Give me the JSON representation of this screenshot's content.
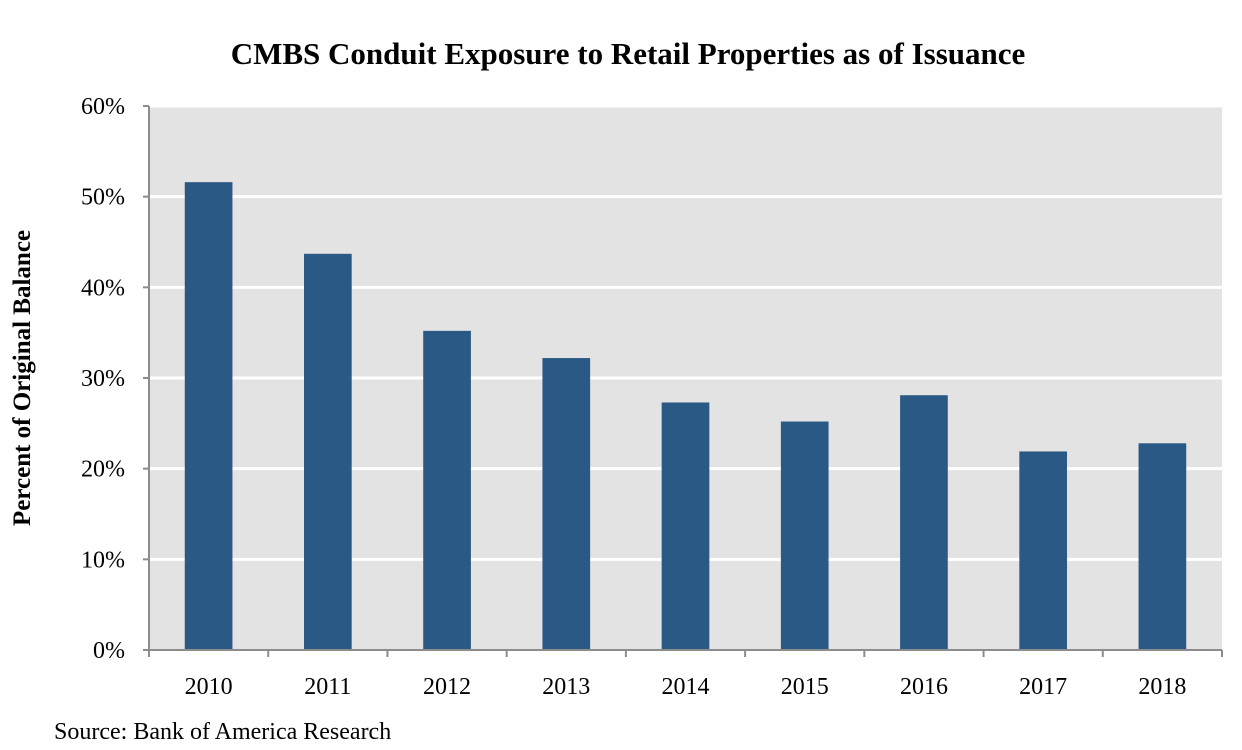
{
  "chart_data": {
    "type": "bar",
    "title": "CMBS Conduit Exposure to Retail Properties as of Issuance",
    "xlabel": "",
    "ylabel": "Percent of Original Balance",
    "categories": [
      "2010",
      "2011",
      "2012",
      "2013",
      "2014",
      "2015",
      "2016",
      "2017",
      "2018"
    ],
    "values": [
      51.6,
      43.7,
      35.2,
      32.2,
      27.3,
      25.2,
      28.1,
      21.9,
      22.8
    ],
    "ylim": [
      0,
      60
    ],
    "yticks": [
      0,
      10,
      20,
      30,
      40,
      50,
      60
    ],
    "ytick_labels": [
      "0%",
      "10%",
      "20%",
      "30%",
      "40%",
      "50%",
      "60%"
    ],
    "grid": true,
    "legend": "none",
    "colors": {
      "bar": "#2B5985",
      "plot_background": "#E3E3E3",
      "gridline": "#FFFFFF",
      "axis": "#8C8C8C"
    }
  },
  "source": "Source: Bank of America Research"
}
